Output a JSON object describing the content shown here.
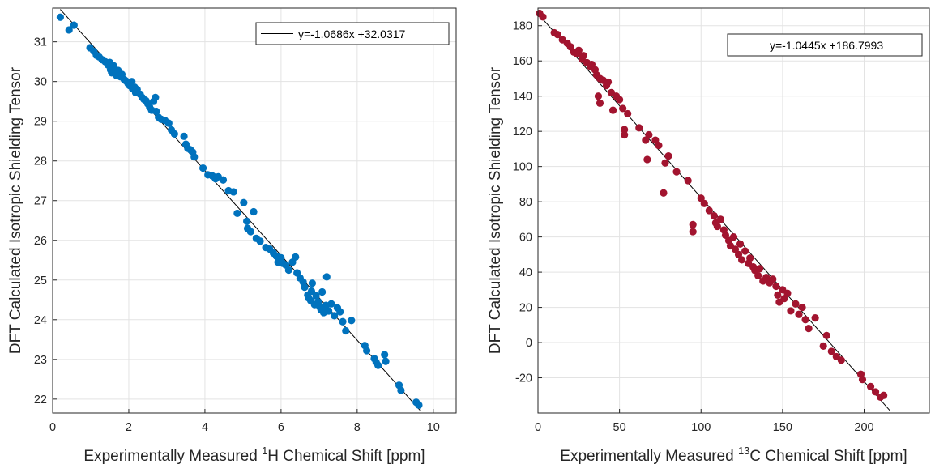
{
  "chart_data": [
    {
      "type": "scatter",
      "xlabel_prefix": "Experimentally Measured ",
      "xlabel_sup": "1",
      "xlabel_suffix": "H Chemical Shift [ppm]",
      "ylabel": "DFT Calculated Isotropic Shielding Tensor",
      "xlim": [
        0,
        10.6
      ],
      "ylim": [
        21.65,
        31.85
      ],
      "xticks": [
        0,
        2,
        4,
        6,
        8,
        10
      ],
      "yticks": [
        22,
        23,
        24,
        25,
        26,
        27,
        28,
        29,
        30,
        31
      ],
      "grid": true,
      "legend_position": "top-right",
      "legend_label": "y=-1.0686x +32.0317",
      "color": "#0072bd",
      "fit": {
        "slope": -1.0686,
        "intercept": 32.0317,
        "x_range": [
          0.2,
          9.65
        ]
      },
      "points": [
        [
          0.2,
          31.62
        ],
        [
          0.43,
          31.3
        ],
        [
          0.56,
          31.42
        ],
        [
          0.98,
          30.85
        ],
        [
          1.08,
          30.76
        ],
        [
          1.15,
          30.66
        ],
        [
          1.22,
          30.62
        ],
        [
          1.3,
          30.55
        ],
        [
          1.38,
          30.5
        ],
        [
          1.45,
          30.42
        ],
        [
          1.5,
          30.48
        ],
        [
          1.52,
          30.3
        ],
        [
          1.55,
          30.22
        ],
        [
          1.6,
          30.4
        ],
        [
          1.62,
          30.25
        ],
        [
          1.68,
          30.15
        ],
        [
          1.72,
          30.28
        ],
        [
          1.78,
          30.12
        ],
        [
          1.82,
          30.18
        ],
        [
          1.88,
          30.05
        ],
        [
          1.92,
          30.02
        ],
        [
          1.98,
          29.95
        ],
        [
          2.02,
          29.9
        ],
        [
          2.08,
          30.0
        ],
        [
          2.1,
          29.82
        ],
        [
          2.15,
          29.86
        ],
        [
          2.18,
          29.72
        ],
        [
          2.22,
          29.8
        ],
        [
          2.3,
          29.68
        ],
        [
          2.35,
          29.6
        ],
        [
          2.4,
          29.55
        ],
        [
          2.45,
          29.52
        ],
        [
          2.5,
          29.44
        ],
        [
          2.55,
          29.35
        ],
        [
          2.6,
          29.28
        ],
        [
          2.65,
          29.5
        ],
        [
          2.7,
          29.6
        ],
        [
          2.72,
          29.25
        ],
        [
          2.78,
          29.1
        ],
        [
          2.85,
          29.05
        ],
        [
          2.95,
          29.02
        ],
        [
          3.05,
          28.95
        ],
        [
          3.12,
          28.78
        ],
        [
          3.2,
          28.68
        ],
        [
          3.45,
          28.62
        ],
        [
          3.5,
          28.42
        ],
        [
          3.55,
          28.32
        ],
        [
          3.62,
          28.28
        ],
        [
          3.68,
          28.22
        ],
        [
          3.72,
          28.1
        ],
        [
          3.95,
          27.82
        ],
        [
          4.08,
          27.65
        ],
        [
          4.2,
          27.62
        ],
        [
          4.28,
          27.55
        ],
        [
          4.35,
          27.6
        ],
        [
          4.48,
          27.52
        ],
        [
          4.62,
          27.25
        ],
        [
          4.75,
          27.22
        ],
        [
          4.85,
          26.68
        ],
        [
          5.02,
          26.95
        ],
        [
          5.1,
          26.48
        ],
        [
          5.12,
          26.3
        ],
        [
          5.2,
          26.22
        ],
        [
          5.28,
          26.72
        ],
        [
          5.35,
          26.05
        ],
        [
          5.45,
          25.98
        ],
        [
          5.6,
          25.82
        ],
        [
          5.7,
          25.78
        ],
        [
          5.8,
          25.68
        ],
        [
          5.88,
          25.6
        ],
        [
          5.92,
          25.45
        ],
        [
          6.0,
          25.56
        ],
        [
          6.05,
          25.42
        ],
        [
          6.12,
          25.38
        ],
        [
          6.2,
          25.25
        ],
        [
          6.3,
          25.45
        ],
        [
          6.38,
          25.58
        ],
        [
          6.42,
          25.18
        ],
        [
          6.5,
          25.05
        ],
        [
          6.58,
          24.95
        ],
        [
          6.62,
          24.82
        ],
        [
          6.7,
          24.62
        ],
        [
          6.72,
          24.55
        ],
        [
          6.78,
          24.48
        ],
        [
          6.8,
          24.72
        ],
        [
          6.82,
          24.92
        ],
        [
          6.88,
          24.38
        ],
        [
          6.92,
          24.6
        ],
        [
          6.98,
          24.45
        ],
        [
          7.02,
          24.32
        ],
        [
          7.05,
          24.25
        ],
        [
          7.08,
          24.7
        ],
        [
          7.12,
          24.18
        ],
        [
          7.18,
          24.36
        ],
        [
          7.2,
          25.08
        ],
        [
          7.25,
          24.22
        ],
        [
          7.32,
          24.4
        ],
        [
          7.4,
          24.1
        ],
        [
          7.48,
          24.3
        ],
        [
          7.55,
          24.2
        ],
        [
          7.62,
          23.95
        ],
        [
          7.7,
          23.72
        ],
        [
          7.85,
          23.98
        ],
        [
          8.2,
          23.35
        ],
        [
          8.25,
          23.22
        ],
        [
          8.45,
          23.02
        ],
        [
          8.5,
          22.92
        ],
        [
          8.55,
          22.85
        ],
        [
          8.72,
          23.12
        ],
        [
          8.75,
          22.95
        ],
        [
          9.1,
          22.35
        ],
        [
          9.15,
          22.22
        ],
        [
          9.55,
          21.92
        ],
        [
          9.62,
          21.85
        ]
      ]
    },
    {
      "type": "scatter",
      "xlabel_prefix": "Experimentally Measured ",
      "xlabel_sup": "13",
      "xlabel_suffix": "C Chemical Shift [ppm]",
      "ylabel": "DFT Calculated Isotropic Shielding Tensor",
      "xlim": [
        0,
        240
      ],
      "ylim": [
        -40,
        190
      ],
      "xticks": [
        0,
        50,
        100,
        150,
        200
      ],
      "yticks": [
        -20,
        0,
        20,
        40,
        60,
        80,
        100,
        120,
        140,
        160,
        180
      ],
      "grid": true,
      "legend_position": "top-right",
      "legend_label": "y=-1.0445x +186.7993",
      "color": "#a2142f",
      "fit": {
        "slope": -1.0445,
        "intercept": 186.7993,
        "x_range": [
          0,
          216
        ]
      },
      "points": [
        [
          1,
          187
        ],
        [
          3,
          185
        ],
        [
          10,
          176
        ],
        [
          12,
          175
        ],
        [
          15,
          172
        ],
        [
          18,
          170
        ],
        [
          20,
          168
        ],
        [
          22,
          165
        ],
        [
          24,
          164
        ],
        [
          25,
          166
        ],
        [
          27,
          161
        ],
        [
          28,
          163
        ],
        [
          30,
          159
        ],
        [
          32,
          157
        ],
        [
          33,
          158
        ],
        [
          35,
          155
        ],
        [
          36,
          152
        ],
        [
          38,
          150
        ],
        [
          40,
          149
        ],
        [
          42,
          146
        ],
        [
          43,
          148
        ],
        [
          45,
          142
        ],
        [
          48,
          140
        ],
        [
          50,
          138
        ],
        [
          52,
          133
        ],
        [
          38,
          136
        ],
        [
          37,
          140
        ],
        [
          46,
          132
        ],
        [
          55,
          130
        ],
        [
          53,
          121
        ],
        [
          53,
          118
        ],
        [
          62,
          122
        ],
        [
          66,
          115
        ],
        [
          67,
          104
        ],
        [
          68,
          118
        ],
        [
          72,
          115
        ],
        [
          74,
          112
        ],
        [
          77,
          85
        ],
        [
          78,
          102
        ],
        [
          80,
          106
        ],
        [
          85,
          97
        ],
        [
          92,
          92
        ],
        [
          95,
          67
        ],
        [
          95,
          63
        ],
        [
          100,
          82
        ],
        [
          102,
          79
        ],
        [
          105,
          75
        ],
        [
          108,
          72
        ],
        [
          109,
          68
        ],
        [
          110,
          66
        ],
        [
          112,
          70
        ],
        [
          114,
          64
        ],
        [
          115,
          61
        ],
        [
          117,
          58
        ],
        [
          118,
          55
        ],
        [
          120,
          60
        ],
        [
          121,
          53
        ],
        [
          123,
          50
        ],
        [
          124,
          56
        ],
        [
          125,
          47
        ],
        [
          127,
          52
        ],
        [
          129,
          45
        ],
        [
          130,
          48
        ],
        [
          132,
          43
        ],
        [
          133,
          41
        ],
        [
          135,
          38
        ],
        [
          136,
          42
        ],
        [
          138,
          35
        ],
        [
          140,
          37
        ],
        [
          142,
          34
        ],
        [
          144,
          36
        ],
        [
          146,
          32
        ],
        [
          147,
          27
        ],
        [
          148,
          23
        ],
        [
          150,
          30
        ],
        [
          151,
          25
        ],
        [
          153,
          28
        ],
        [
          155,
          18
        ],
        [
          158,
          22
        ],
        [
          160,
          16
        ],
        [
          162,
          20
        ],
        [
          164,
          13
        ],
        [
          166,
          8
        ],
        [
          170,
          14
        ],
        [
          175,
          -2
        ],
        [
          177,
          4
        ],
        [
          180,
          -5
        ],
        [
          183,
          -8
        ],
        [
          186,
          -10
        ],
        [
          198,
          -18
        ],
        [
          199,
          -21
        ],
        [
          204,
          -25
        ],
        [
          207,
          -28
        ],
        [
          210,
          -31
        ],
        [
          212,
          -30
        ]
      ]
    }
  ]
}
